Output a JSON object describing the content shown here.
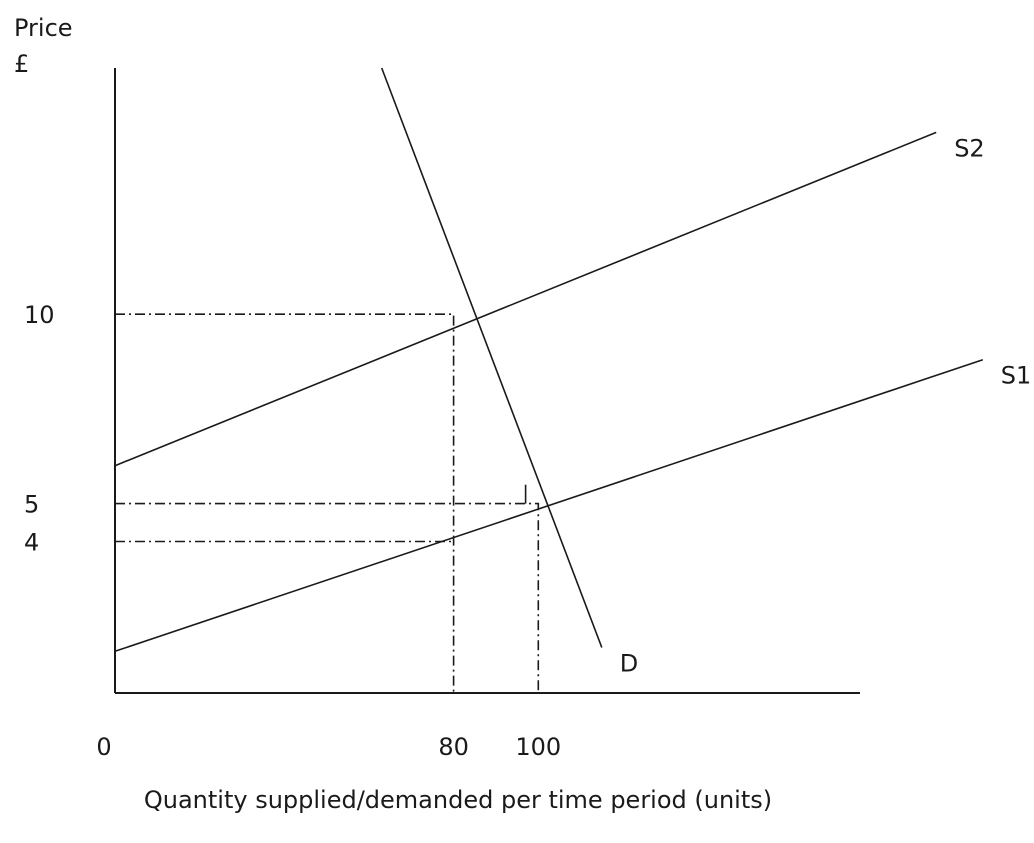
{
  "chart_data": {
    "type": "line",
    "title": "",
    "ylabel_line1": "Price",
    "ylabel_line2": "£",
    "xlabel": "Quantity supplied/demanded per time period (units)",
    "x_origin_label": "0",
    "xticks": [
      {
        "value": 80,
        "label": "80"
      },
      {
        "value": 100,
        "label": "100"
      }
    ],
    "yticks": [
      {
        "value": 10,
        "label": "10"
      },
      {
        "value": 5,
        "label": "5"
      },
      {
        "value": 4,
        "label": "4"
      }
    ],
    "series": [
      {
        "name": "S1",
        "points": [
          [
            0,
            1.1
          ],
          [
            205,
            8.8
          ]
        ]
      },
      {
        "name": "S2",
        "points": [
          [
            0,
            6.0
          ],
          [
            194,
            14.8
          ]
        ]
      },
      {
        "name": "D",
        "points": [
          [
            63,
            16.5
          ],
          [
            115,
            1.2
          ]
        ]
      }
    ],
    "guides": [
      {
        "points": [
          [
            0,
            10
          ],
          [
            80,
            10
          ],
          [
            80,
            0
          ]
        ]
      },
      {
        "points": [
          [
            0,
            5
          ],
          [
            100,
            5
          ],
          [
            100,
            0
          ]
        ]
      },
      {
        "points": [
          [
            0,
            4
          ],
          [
            80,
            4
          ]
        ]
      }
    ],
    "tax_marker": {
      "x": 97,
      "y_from": 5,
      "y_to": 5.5
    },
    "xlim": [
      0,
      176
    ],
    "ylim": [
      0,
      16.5
    ],
    "grid": false,
    "legend": "none"
  }
}
